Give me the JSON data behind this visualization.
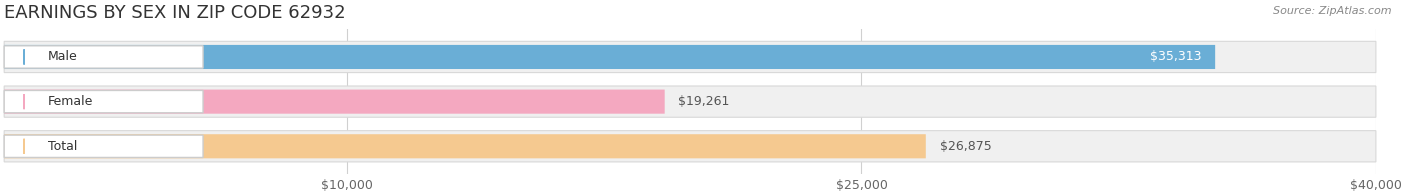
{
  "title": "EARNINGS BY SEX IN ZIP CODE 62932",
  "source": "Source: ZipAtlas.com",
  "categories": [
    "Male",
    "Female",
    "Total"
  ],
  "values": [
    35313,
    19261,
    26875
  ],
  "bar_colors": [
    "#6aaed6",
    "#f4a8c0",
    "#f5c990"
  ],
  "xmin": 0,
  "xmax": 40000,
  "xticks": [
    10000,
    25000,
    40000
  ],
  "xtick_labels": [
    "$10,000",
    "$25,000",
    "$40,000"
  ],
  "value_labels": [
    "$35,313",
    "$19,261",
    "$26,875"
  ],
  "value_inside": [
    true,
    false,
    false
  ],
  "title_fontsize": 13,
  "tick_fontsize": 9,
  "bar_label_fontsize": 9,
  "source_fontsize": 8,
  "background_color": "#ffffff",
  "grid_color": "#d0d0d0",
  "bg_bar_color": "#f0f0f0",
  "bg_bar_edge": "#d8d8d8"
}
